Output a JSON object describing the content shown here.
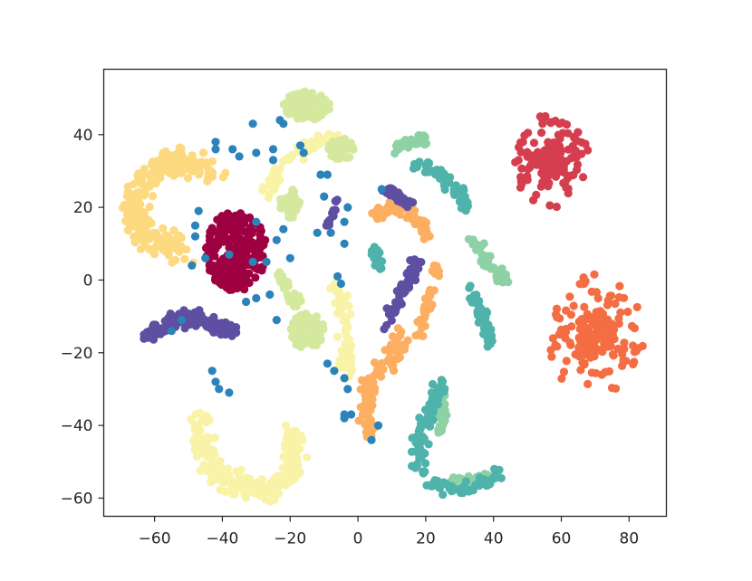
{
  "chart_data": {
    "type": "scatter",
    "title": "",
    "xlabel": "",
    "ylabel": "",
    "xlim": [
      -75,
      91
    ],
    "ylim": [
      -65,
      58
    ],
    "grid": false,
    "legend": "none",
    "xticks": [
      -60,
      -40,
      -20,
      0,
      20,
      40,
      60,
      80
    ],
    "yticks": [
      -60,
      -40,
      -20,
      0,
      20,
      40
    ],
    "xtick_labels": [
      "−60",
      "−40",
      "−20",
      "0",
      "20",
      "40",
      "60",
      "80"
    ],
    "ytick_labels": [
      "−60",
      "−40",
      "−20",
      "0",
      "20",
      "40"
    ],
    "series": [
      {
        "color": "#9e0142",
        "clusters": [
          {
            "shape": "blob",
            "cx": -36,
            "cy": 8,
            "rx": 9,
            "ry": 11,
            "n": 260
          }
        ]
      },
      {
        "color": "#d53e4f",
        "clusters": [
          {
            "shape": "burst",
            "cx": 57,
            "cy": 33,
            "r": 11,
            "n": 170
          }
        ]
      },
      {
        "color": "#f46d43",
        "clusters": [
          {
            "shape": "burst",
            "cx": 70,
            "cy": -15,
            "r": 14,
            "n": 180
          }
        ]
      },
      {
        "color": "#fdae61",
        "clusters": [
          {
            "shape": "path",
            "pts": [
              [
                5,
                18
              ],
              [
                12,
                20
              ],
              [
                18,
                17
              ],
              [
                20,
                12
              ]
            ],
            "w": 1.5,
            "n": 60
          },
          {
            "shape": "path",
            "pts": [
              [
                23,
                5
              ],
              [
                22,
                -3
              ],
              [
                19,
                -11
              ],
              [
                18,
                -15
              ]
            ],
            "w": 1.2,
            "n": 40
          },
          {
            "shape": "path",
            "pts": [
              [
                13,
                -16
              ],
              [
                9,
                -22
              ],
              [
                4,
                -28
              ],
              [
                2,
                -34
              ],
              [
                3,
                -40
              ],
              [
                4,
                -42
              ]
            ],
            "w": 2.2,
            "n": 110
          }
        ]
      },
      {
        "color": "#fdd97f",
        "clusters": [
          {
            "shape": "path",
            "pts": [
              [
                -43,
                30
              ],
              [
                -52,
                33
              ],
              [
                -61,
                30
              ],
              [
                -66,
                22
              ],
              [
                -64,
                14
              ],
              [
                -58,
                10
              ],
              [
                -52,
                9
              ]
            ],
            "w": 3.2,
            "n": 250
          }
        ]
      },
      {
        "color": "#f9f3a8",
        "clusters": [
          {
            "shape": "path",
            "pts": [
              [
                -28,
                23
              ],
              [
                -22,
                32
              ],
              [
                -15,
                37
              ],
              [
                -8,
                40
              ]
            ],
            "w": 1.6,
            "n": 60
          },
          {
            "shape": "path",
            "pts": [
              [
                -6,
                -1
              ],
              [
                -4,
                -10
              ],
              [
                -3,
                -20
              ],
              [
                -3,
                -25
              ]
            ],
            "w": 1.8,
            "n": 70
          },
          {
            "shape": "path",
            "pts": [
              [
                -46,
                -38
              ],
              [
                -46,
                -45
              ],
              [
                -43,
                -52
              ],
              [
                -35,
                -57
              ],
              [
                -27,
                -58
              ],
              [
                -20,
                -54
              ],
              [
                -18,
                -47
              ],
              [
                -20,
                -42
              ]
            ],
            "w": 2.6,
            "n": 260
          }
        ]
      },
      {
        "color": "#d4e89e",
        "clusters": [
          {
            "shape": "blob",
            "cx": -15,
            "cy": 48,
            "rx": 7,
            "ry": 4,
            "n": 110
          },
          {
            "shape": "blob",
            "cx": -5,
            "cy": 36,
            "rx": 4,
            "ry": 3,
            "n": 40
          },
          {
            "shape": "blob",
            "cx": -20,
            "cy": 21,
            "rx": 3,
            "ry": 4,
            "n": 40
          },
          {
            "shape": "blob",
            "cx": -15,
            "cy": -14,
            "rx": 5,
            "ry": 5,
            "n": 90
          },
          {
            "shape": "path",
            "pts": [
              [
                -23,
                1
              ],
              [
                -20,
                -4
              ],
              [
                -17,
                -8
              ]
            ],
            "w": 1.4,
            "n": 30
          }
        ]
      },
      {
        "color": "#8ed1a4",
        "clusters": [
          {
            "shape": "path",
            "pts": [
              [
                10,
                36
              ],
              [
                15,
                38
              ],
              [
                20,
                39
              ]
            ],
            "w": 1.2,
            "n": 30
          },
          {
            "shape": "path",
            "pts": [
              [
                34,
                11
              ],
              [
                38,
                6
              ],
              [
                42,
                2
              ],
              [
                43,
                -1
              ]
            ],
            "w": 1.5,
            "n": 50
          },
          {
            "shape": "path",
            "pts": [
              [
                25,
                -33
              ],
              [
                25,
                -38
              ],
              [
                24,
                -42
              ]
            ],
            "w": 1.2,
            "n": 30
          },
          {
            "shape": "path",
            "pts": [
              [
                28,
                -56
              ],
              [
                34,
                -55
              ],
              [
                40,
                -54
              ]
            ],
            "w": 1.4,
            "n": 40
          }
        ]
      },
      {
        "color": "#4fb3ab",
        "clusters": [
          {
            "shape": "path",
            "pts": [
              [
                17,
                32
              ],
              [
                25,
                29
              ],
              [
                31,
                22
              ],
              [
                33,
                18
              ]
            ],
            "w": 1.4,
            "n": 70
          },
          {
            "shape": "path",
            "pts": [
              [
                33,
                -2
              ],
              [
                36,
                -8
              ],
              [
                38,
                -13
              ],
              [
                39,
                -17
              ]
            ],
            "w": 1.3,
            "n": 50
          },
          {
            "shape": "path",
            "pts": [
              [
                25,
                -28
              ],
              [
                21,
                -36
              ],
              [
                18,
                -44
              ],
              [
                18,
                -52
              ]
            ],
            "w": 1.6,
            "n": 80
          },
          {
            "shape": "path",
            "pts": [
              [
                22,
                -56
              ],
              [
                30,
                -58
              ],
              [
                38,
                -56
              ],
              [
                42,
                -52
              ]
            ],
            "w": 1.4,
            "n": 60
          },
          {
            "shape": "path",
            "pts": [
              [
                5,
                8
              ],
              [
                6,
                5
              ],
              [
                6,
                2
              ]
            ],
            "w": 1.0,
            "n": 20
          }
        ]
      },
      {
        "color": "#5e4fa2",
        "clusters": [
          {
            "shape": "path",
            "pts": [
              [
                -63,
                -16
              ],
              [
                -56,
                -12
              ],
              [
                -50,
                -10
              ],
              [
                -43,
                -12
              ],
              [
                -36,
                -15
              ]
            ],
            "w": 1.6,
            "n": 150
          },
          {
            "shape": "path",
            "pts": [
              [
                17,
                5
              ],
              [
                14,
                -2
              ],
              [
                11,
                -8
              ],
              [
                8,
                -13
              ]
            ],
            "w": 1.4,
            "n": 60
          },
          {
            "shape": "path",
            "pts": [
              [
                8,
                25
              ],
              [
                13,
                22
              ],
              [
                16,
                21
              ]
            ],
            "w": 1.0,
            "n": 30
          },
          {
            "shape": "path",
            "pts": [
              [
                -10,
                15
              ],
              [
                -7,
                18
              ],
              [
                -6,
                22
              ]
            ],
            "w": 1.0,
            "n": 15
          }
        ]
      },
      {
        "color": "#2b83ba",
        "clusters": [
          {
            "shape": "scatter",
            "pts": [
              [
                -42,
                38
              ],
              [
                -42,
                36
              ],
              [
                -37,
                36
              ],
              [
                -35,
                34
              ],
              [
                -30,
                35
              ],
              [
                -25,
                36
              ],
              [
                -22,
                43
              ],
              [
                -23,
                44
              ],
              [
                -31,
                43
              ],
              [
                -25,
                33
              ],
              [
                -38,
                7
              ],
              [
                -45,
                6
              ],
              [
                -49,
                4
              ],
              [
                -47,
                19
              ],
              [
                -48,
                15
              ],
              [
                -48,
                12
              ],
              [
                -31,
                5
              ],
              [
                -27,
                5
              ],
              [
                -30,
                -5
              ],
              [
                -33,
                -6
              ],
              [
                -26,
                -4
              ],
              [
                -24,
                -11
              ],
              [
                -20,
                6
              ],
              [
                -24,
                11
              ],
              [
                -22,
                14
              ],
              [
                -11,
                29
              ],
              [
                -9,
                29
              ],
              [
                -12,
                13
              ],
              [
                -8,
                13
              ],
              [
                -4,
                10
              ],
              [
                -3,
                20
              ],
              [
                -4,
                16
              ],
              [
                -6,
                1
              ],
              [
                -5,
                -1
              ],
              [
                -9,
                -23
              ],
              [
                -7,
                -25
              ],
              [
                -4,
                -27
              ],
              [
                -3,
                -30
              ],
              [
                -4,
                -37
              ],
              [
                -2,
                -37
              ],
              [
                -4,
                -38
              ],
              [
                -43,
                -25
              ],
              [
                -42,
                -28
              ],
              [
                -41,
                -30
              ],
              [
                -38,
                -31
              ],
              [
                -55,
                -14
              ],
              [
                -52,
                -11
              ],
              [
                -30,
                16
              ],
              [
                -17,
                37
              ],
              [
                -16,
                35
              ],
              [
                7,
                25
              ],
              [
                4,
                -44
              ],
              [
                6,
                -40
              ],
              [
                -10,
                23
              ]
            ]
          }
        ]
      }
    ]
  }
}
